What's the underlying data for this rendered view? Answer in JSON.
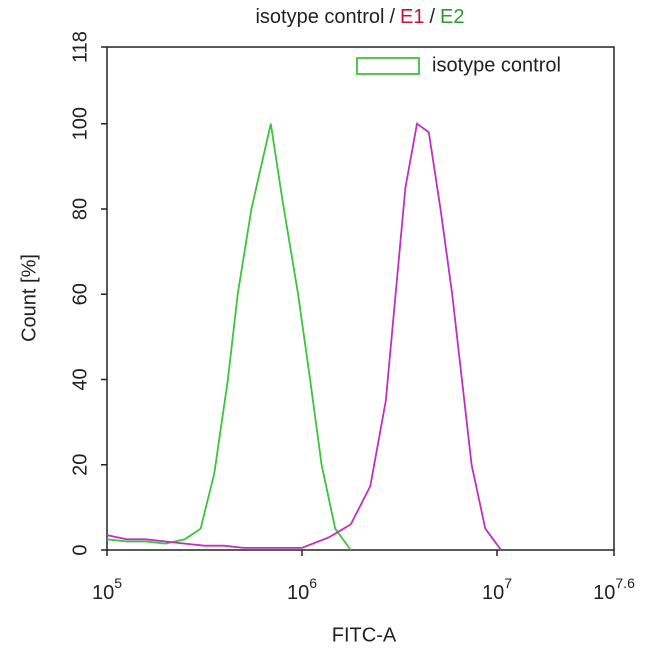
{
  "chart_data": {
    "type": "line",
    "title_parts": [
      {
        "text": "isotype control",
        "color": "#222222"
      },
      {
        "text": "/",
        "color": "#222222"
      },
      {
        "text": "E1",
        "color": "#c0143c"
      },
      {
        "text": "/",
        "color": "#222222"
      },
      {
        "text": "E2",
        "color": "#2a9a2a"
      }
    ],
    "x_label": "FITC-A",
    "y_label": "Count [%]",
    "x_log": true,
    "xlim": [
      100000,
      39810717
    ],
    "xticks": [
      {
        "value": 100000,
        "label": "10",
        "power": "5"
      },
      {
        "value": 1000000,
        "label": "10",
        "power": "6"
      },
      {
        "value": 10000000,
        "label": "10",
        "power": "7"
      },
      {
        "value": 39810717,
        "label": "10",
        "power": "7.6"
      }
    ],
    "ylim": [
      0,
      118
    ],
    "yticks": [
      0,
      20,
      40,
      60,
      80,
      100,
      118
    ],
    "legend": "upper right",
    "series": [
      {
        "name": "isotype control",
        "color": "#3cc43c",
        "x": [
          100000,
          126000,
          158000,
          200000,
          251000,
          302000,
          355000,
          417000,
          468000,
          550000,
          692000,
          794000,
          955000,
          1100000,
          1260000,
          1480000,
          1780000
        ],
        "values": [
          2.5,
          2,
          2,
          1.5,
          2.5,
          5,
          18,
          40,
          60,
          80,
          100,
          82,
          60,
          40,
          20,
          5,
          0
        ]
      },
      {
        "color": "#c030c0",
        "x": [
          100000,
          126000,
          158000,
          200000,
          251000,
          316000,
          398000,
          501000,
          631000,
          794000,
          1000000,
          1380000,
          1780000,
          2240000,
          2690000,
          3020000,
          3390000,
          3890000,
          4470000,
          5130000,
          5890000,
          6610000,
          7410000,
          8710000,
          10500000
        ],
        "values": [
          3.5,
          2.5,
          2.5,
          2,
          1.5,
          1,
          1,
          0.5,
          0.5,
          0.5,
          0.5,
          3,
          6,
          15,
          35,
          60,
          85,
          100,
          98,
          80,
          60,
          40,
          20,
          5,
          0
        ]
      }
    ]
  }
}
